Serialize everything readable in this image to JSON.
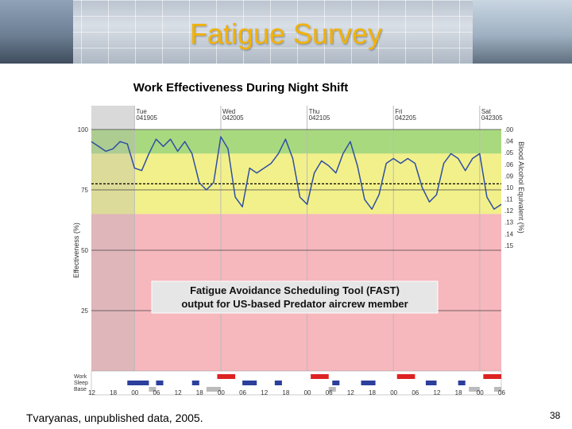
{
  "slide": {
    "title": "Fatigue Survey",
    "citation": "Tvaryanas, unpublished data, 2005.",
    "page_number": "38"
  },
  "chart_data": {
    "type": "line",
    "title": "Work Effectiveness During Night Shift",
    "ylabel": "Effectiveness (%)",
    "y2label": "Blood Alcohol Equivalent (%)",
    "ylim": [
      0,
      100
    ],
    "y_ticks": [
      100,
      75,
      50,
      25
    ],
    "criterion_line": 77.5,
    "zones": [
      {
        "name": "green",
        "from": 90,
        "to": 100,
        "color": "#a9d97f"
      },
      {
        "name": "yellow",
        "from": 65,
        "to": 90,
        "color": "#f2f08a"
      },
      {
        "name": "red",
        "from": 0,
        "to": 65,
        "color": "#f6b7bd"
      }
    ],
    "bac_labels": [
      ".00",
      ".04",
      ".05",
      ".06",
      ".09",
      ".10",
      ".11",
      ".12",
      ".13",
      ".14",
      ".15"
    ],
    "days": [
      {
        "name": "Tue",
        "date": "041905",
        "hour": 0
      },
      {
        "name": "Wed",
        "date": "042005",
        "hour": 24
      },
      {
        "name": "Thu",
        "date": "042105",
        "hour": 48
      },
      {
        "name": "Fri",
        "date": "042205",
        "hour": 72
      },
      {
        "name": "Sat",
        "date": "042305",
        "hour": 96
      }
    ],
    "x_tick_labels": [
      "12",
      "18",
      "00",
      "06",
      "12",
      "18",
      "00",
      "06",
      "12",
      "18",
      "00",
      "06",
      "12",
      "18",
      "00",
      "06",
      "12",
      "18",
      "00",
      "06"
    ],
    "x_range_hours": [
      -12,
      102
    ],
    "series": [
      {
        "color": "#2e4fa3",
        "x": [
          -12,
          -10,
          -8,
          -6,
          -4,
          -2,
          0,
          2,
          4,
          6,
          8,
          10,
          12,
          14,
          16,
          18,
          20,
          22,
          24,
          26,
          28,
          30,
          32,
          34,
          36,
          38,
          40,
          42,
          44,
          46,
          48,
          50,
          52,
          54,
          56,
          58,
          60,
          62,
          64,
          66,
          68,
          70,
          72,
          74,
          76,
          78,
          80,
          82,
          84,
          86,
          88,
          90,
          92,
          94,
          96,
          98,
          100,
          102
        ],
        "values": [
          95,
          93,
          91,
          92,
          95,
          94,
          84,
          83,
          90,
          96,
          93,
          96,
          91,
          95,
          90,
          78,
          75,
          78,
          97,
          92,
          72,
          68,
          84,
          82,
          84,
          86,
          90,
          96,
          88,
          72,
          69,
          82,
          87,
          85,
          82,
          90,
          95,
          85,
          71,
          67,
          73,
          86,
          88,
          86,
          88,
          86,
          76,
          70,
          73,
          86,
          90,
          88,
          83,
          88,
          90,
          72,
          67,
          69
        ]
      }
    ],
    "rows": [
      {
        "label": "Work",
        "color": "#dd2222",
        "bars": [
          [
            23,
            28
          ],
          [
            49,
            54
          ],
          [
            73,
            78
          ],
          [
            97,
            102
          ]
        ]
      },
      {
        "label": "Sleep",
        "color": "#2c3f9c",
        "bars": [
          [
            -2,
            4
          ],
          [
            6,
            8
          ],
          [
            16,
            18
          ],
          [
            30,
            34
          ],
          [
            39,
            41
          ],
          [
            55,
            57
          ],
          [
            63,
            67
          ],
          [
            81,
            84
          ],
          [
            90,
            92
          ]
        ]
      },
      {
        "label": "Base",
        "color": "#bbbbbb",
        "bars": [
          [
            4,
            6
          ],
          [
            20,
            24
          ],
          [
            54,
            56
          ],
          [
            93,
            96
          ],
          [
            100,
            102
          ]
        ]
      }
    ],
    "annotation": [
      "Fatigue Avoidance Scheduling Tool (FAST)",
      "output for US-based Predator aircrew member"
    ]
  }
}
